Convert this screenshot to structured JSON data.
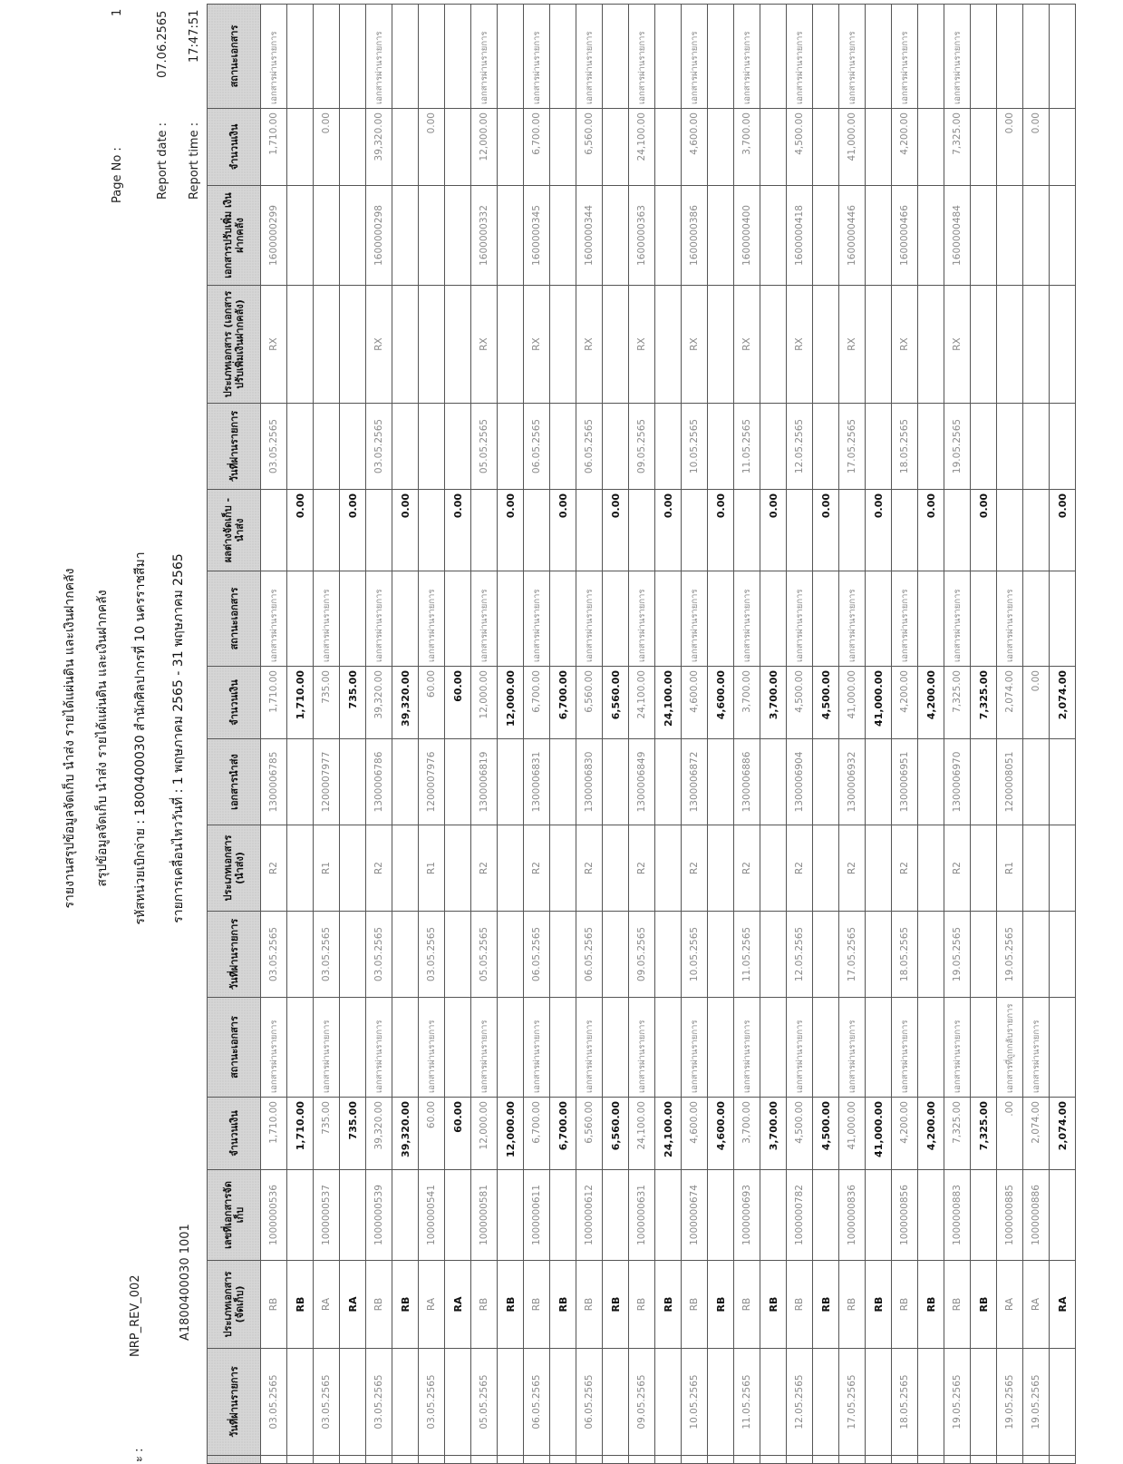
{
  "header": {
    "cut_label": "ะ :",
    "report_code": "NRP_REV_002",
    "unit_code": "A1800400030 1001",
    "title_lines": [
      "รายงานสรุปข้อมูลจัดเก็บ นำส่ง รายได้แผ่นดิน และเงินฝากคลัง",
      "สรุปข้อมูลจัดเก็บ นำส่ง รายได้แผ่นดิน และเงินฝากคลัง",
      "รหัสหน่วยเบิกจ่าย : 1800400030 สำนักศิลปากรที่ 10 นครราชสีมา",
      "รายการเคลื่อนไหววันที่ : 1 พฤษภาคม 2565 -  31 พฤษภาคม 2565"
    ],
    "page_no_label": "Page No :",
    "page_no": "1",
    "report_date_label": "Report date :",
    "report_date": "07.06.2565",
    "report_time_label": "Report time :",
    "report_time": "17:47:51"
  },
  "table": {
    "columns": [
      "วันที่ผ่านรายการ",
      "ประเภทเอกสาร (จัดเก็บ)",
      "เลขที่เอกสารจัดเก็บ",
      "จำนวนเงิน",
      "สถานะเอกสาร",
      "วันที่ผ่านรายการ",
      "ประเภทเอกสาร (นำส่ง)",
      "เอกสารนำส่ง",
      "จำนวนเงิน",
      "สถานะเอกสาร",
      "ผลต่างจัดเก็บ - นำส่ง",
      "วันที่ผ่านรายการ",
      "ประเภทเอกสาร (เอกสารปรับเพิ่มเงินฝากคลัง)",
      "เอกสารปรับเพิ่ม เงินฝากคลัง",
      "จำนวนเงิน",
      "สถานะเอกสาร"
    ],
    "rows": [
      {
        "kind": "item",
        "cells": [
          "03.05.2565",
          "RB",
          "1000000536",
          "1,710.00",
          "เอกสารผ่านรายการ",
          "03.05.2565",
          "R2",
          "1300006785",
          "1,710.00",
          "เอกสารผ่านรายการ",
          "",
          "03.05.2565",
          "RX",
          "1600000299",
          "1,710.00",
          "เอกสารผ่านรายการ"
        ]
      },
      {
        "kind": "sub",
        "cells": [
          "",
          "RB",
          "",
          "1,710.00",
          "",
          "",
          "",
          "",
          "1,710.00",
          "",
          "0.00",
          "",
          "",
          "",
          "",
          ""
        ]
      },
      {
        "kind": "item",
        "cells": [
          "03.05.2565",
          "RA",
          "1000000537",
          "735.00",
          "เอกสารผ่านรายการ",
          "03.05.2565",
          "R1",
          "1200007977",
          "735.00",
          "เอกสารผ่านรายการ",
          "",
          "",
          "",
          "",
          "0.00",
          ""
        ]
      },
      {
        "kind": "sub",
        "cells": [
          "",
          "RA",
          "",
          "735.00",
          "",
          "",
          "",
          "",
          "735.00",
          "",
          "0.00",
          "",
          "",
          "",
          "",
          ""
        ]
      },
      {
        "kind": "item",
        "cells": [
          "03.05.2565",
          "RB",
          "1000000539",
          "39,320.00",
          "เอกสารผ่านรายการ",
          "03.05.2565",
          "R2",
          "1300006786",
          "39,320.00",
          "เอกสารผ่านรายการ",
          "",
          "03.05.2565",
          "RX",
          "1600000298",
          "39,320.00",
          "เอกสารผ่านรายการ"
        ]
      },
      {
        "kind": "sub",
        "cells": [
          "",
          "RB",
          "",
          "39,320.00",
          "",
          "",
          "",
          "",
          "39,320.00",
          "",
          "0.00",
          "",
          "",
          "",
          "",
          ""
        ]
      },
      {
        "kind": "item",
        "cells": [
          "03.05.2565",
          "RA",
          "1000000541",
          "60.00",
          "เอกสารผ่านรายการ",
          "03.05.2565",
          "R1",
          "1200007976",
          "60.00",
          "เอกสารผ่านรายการ",
          "",
          "",
          "",
          "",
          "0.00",
          ""
        ]
      },
      {
        "kind": "sub",
        "cells": [
          "",
          "RA",
          "",
          "60.00",
          "",
          "",
          "",
          "",
          "60.00",
          "",
          "0.00",
          "",
          "",
          "",
          "",
          ""
        ]
      },
      {
        "kind": "item",
        "cells": [
          "05.05.2565",
          "RB",
          "1000000581",
          "12,000.00",
          "เอกสารผ่านรายการ",
          "05.05.2565",
          "R2",
          "1300006819",
          "12,000.00",
          "เอกสารผ่านรายการ",
          "",
          "05.05.2565",
          "RX",
          "1600000332",
          "12,000.00",
          "เอกสารผ่านรายการ"
        ]
      },
      {
        "kind": "sub",
        "cells": [
          "",
          "RB",
          "",
          "12,000.00",
          "",
          "",
          "",
          "",
          "12,000.00",
          "",
          "0.00",
          "",
          "",
          "",
          "",
          ""
        ]
      },
      {
        "kind": "item",
        "cells": [
          "06.05.2565",
          "RB",
          "1000000611",
          "6,700.00",
          "เอกสารผ่านรายการ",
          "06.05.2565",
          "R2",
          "1300006831",
          "6,700.00",
          "เอกสารผ่านรายการ",
          "",
          "06.05.2565",
          "RX",
          "1600000345",
          "6,700.00",
          "เอกสารผ่านรายการ"
        ]
      },
      {
        "kind": "sub",
        "cells": [
          "",
          "RB",
          "",
          "6,700.00",
          "",
          "",
          "",
          "",
          "6,700.00",
          "",
          "0.00",
          "",
          "",
          "",
          "",
          ""
        ]
      },
      {
        "kind": "item",
        "cells": [
          "06.05.2565",
          "RB",
          "1000000612",
          "6,560.00",
          "เอกสารผ่านรายการ",
          "06.05.2565",
          "R2",
          "1300006830",
          "6,560.00",
          "เอกสารผ่านรายการ",
          "",
          "06.05.2565",
          "RX",
          "1600000344",
          "6,560.00",
          "เอกสารผ่านรายการ"
        ]
      },
      {
        "kind": "sub",
        "cells": [
          "",
          "RB",
          "",
          "6,560.00",
          "",
          "",
          "",
          "",
          "6,560.00",
          "",
          "0.00",
          "",
          "",
          "",
          "",
          ""
        ]
      },
      {
        "kind": "item",
        "cells": [
          "09.05.2565",
          "RB",
          "1000000631",
          "24,100.00",
          "เอกสารผ่านรายการ",
          "09.05.2565",
          "R2",
          "1300006849",
          "24,100.00",
          "เอกสารผ่านรายการ",
          "",
          "09.05.2565",
          "RX",
          "1600000363",
          "24,100.00",
          "เอกสารผ่านรายการ"
        ]
      },
      {
        "kind": "sub",
        "cells": [
          "",
          "RB",
          "",
          "24,100.00",
          "",
          "",
          "",
          "",
          "24,100.00",
          "",
          "0.00",
          "",
          "",
          "",
          "",
          ""
        ]
      },
      {
        "kind": "item",
        "cells": [
          "10.05.2565",
          "RB",
          "1000000674",
          "4,600.00",
          "เอกสารผ่านรายการ",
          "10.05.2565",
          "R2",
          "1300006872",
          "4,600.00",
          "เอกสารผ่านรายการ",
          "",
          "10.05.2565",
          "RX",
          "1600000386",
          "4,600.00",
          "เอกสารผ่านรายการ"
        ]
      },
      {
        "kind": "sub",
        "cells": [
          "",
          "RB",
          "",
          "4,600.00",
          "",
          "",
          "",
          "",
          "4,600.00",
          "",
          "0.00",
          "",
          "",
          "",
          "",
          ""
        ]
      },
      {
        "kind": "item",
        "cells": [
          "11.05.2565",
          "RB",
          "1000000693",
          "3,700.00",
          "เอกสารผ่านรายการ",
          "11.05.2565",
          "R2",
          "1300006886",
          "3,700.00",
          "เอกสารผ่านรายการ",
          "",
          "11.05.2565",
          "RX",
          "1600000400",
          "3,700.00",
          "เอกสารผ่านรายการ"
        ]
      },
      {
        "kind": "sub",
        "cells": [
          "",
          "RB",
          "",
          "3,700.00",
          "",
          "",
          "",
          "",
          "3,700.00",
          "",
          "0.00",
          "",
          "",
          "",
          "",
          ""
        ]
      },
      {
        "kind": "item",
        "cells": [
          "12.05.2565",
          "RB",
          "1000000782",
          "4,500.00",
          "เอกสารผ่านรายการ",
          "12.05.2565",
          "R2",
          "1300006904",
          "4,500.00",
          "เอกสารผ่านรายการ",
          "",
          "12.05.2565",
          "RX",
          "1600000418",
          "4,500.00",
          "เอกสารผ่านรายการ"
        ]
      },
      {
        "kind": "sub",
        "cells": [
          "",
          "RB",
          "",
          "4,500.00",
          "",
          "",
          "",
          "",
          "4,500.00",
          "",
          "0.00",
          "",
          "",
          "",
          "",
          ""
        ]
      },
      {
        "kind": "item",
        "cells": [
          "17.05.2565",
          "RB",
          "1000000836",
          "41,000.00",
          "เอกสารผ่านรายการ",
          "17.05.2565",
          "R2",
          "1300006932",
          "41,000.00",
          "เอกสารผ่านรายการ",
          "",
          "17.05.2565",
          "RX",
          "1600000446",
          "41,000.00",
          "เอกสารผ่านรายการ"
        ]
      },
      {
        "kind": "sub",
        "cells": [
          "",
          "RB",
          "",
          "41,000.00",
          "",
          "",
          "",
          "",
          "41,000.00",
          "",
          "0.00",
          "",
          "",
          "",
          "",
          ""
        ]
      },
      {
        "kind": "item",
        "cells": [
          "18.05.2565",
          "RB",
          "1000000856",
          "4,200.00",
          "เอกสารผ่านรายการ",
          "18.05.2565",
          "R2",
          "1300006951",
          "4,200.00",
          "เอกสารผ่านรายการ",
          "",
          "18.05.2565",
          "RX",
          "1600000466",
          "4,200.00",
          "เอกสารผ่านรายการ"
        ]
      },
      {
        "kind": "sub",
        "cells": [
          "",
          "RB",
          "",
          "4,200.00",
          "",
          "",
          "",
          "",
          "4,200.00",
          "",
          "0.00",
          "",
          "",
          "",
          "",
          ""
        ]
      },
      {
        "kind": "item",
        "cells": [
          "19.05.2565",
          "RB",
          "1000000883",
          "7,325.00",
          "เอกสารผ่านรายการ",
          "19.05.2565",
          "R2",
          "1300006970",
          "7,325.00",
          "เอกสารผ่านรายการ",
          "",
          "19.05.2565",
          "RX",
          "1600000484",
          "7,325.00",
          "เอกสารผ่านรายการ"
        ]
      },
      {
        "kind": "sub",
        "cells": [
          "",
          "RB",
          "",
          "7,325.00",
          "",
          "",
          "",
          "",
          "7,325.00",
          "",
          "0.00",
          "",
          "",
          "",
          "",
          ""
        ]
      },
      {
        "kind": "item",
        "cells": [
          "19.05.2565",
          "RA",
          "1000000885",
          ".00",
          "เอกสารที่ถูกกลับรายการ",
          "19.05.2565",
          "R1",
          "1200008051",
          "2,074.00",
          "เอกสารผ่านรายการ",
          "",
          "",
          "",
          "",
          "0.00",
          ""
        ]
      },
      {
        "kind": "item",
        "cells": [
          "19.05.2565",
          "RA",
          "1000000886",
          "2,074.00",
          "เอกสารผ่านรายการ",
          "",
          "",
          "",
          "0.00",
          "",
          "",
          "",
          "",
          "",
          "0.00",
          ""
        ]
      },
      {
        "kind": "sub",
        "cells": [
          "",
          "RA",
          "",
          "2,074.00",
          "",
          "",
          "",
          "",
          "2,074.00",
          "",
          "0.00",
          "",
          "",
          "",
          "",
          ""
        ]
      }
    ]
  }
}
